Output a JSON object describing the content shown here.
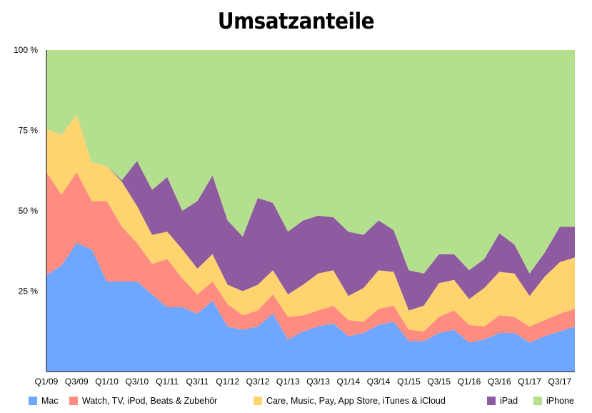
{
  "chart_data": {
    "type": "area",
    "stacked": true,
    "normalized": true,
    "title": "Umsatzanteile",
    "xlabel": "",
    "ylabel": "",
    "ylim": [
      0,
      100
    ],
    "y_ticks": [
      25,
      50,
      75,
      100
    ],
    "y_tick_labels": [
      "25 %",
      "50 %",
      "75 %",
      "100 %"
    ],
    "grid": false,
    "legend_position": "bottom",
    "x": [
      "Q1/09",
      "Q2/09",
      "Q3/09",
      "Q4/09",
      "Q1/10",
      "Q2/10",
      "Q3/10",
      "Q4/10",
      "Q1/11",
      "Q2/11",
      "Q3/11",
      "Q4/11",
      "Q1/12",
      "Q2/12",
      "Q3/12",
      "Q4/12",
      "Q1/13",
      "Q2/13",
      "Q3/13",
      "Q4/13",
      "Q1/14",
      "Q2/14",
      "Q3/14",
      "Q4/14",
      "Q1/15",
      "Q2/15",
      "Q3/15",
      "Q4/15",
      "Q1/16",
      "Q2/16",
      "Q3/16",
      "Q4/16",
      "Q1/17",
      "Q2/17",
      "Q3/17",
      "Q4/17"
    ],
    "x_tick_labels": [
      "Q1/09",
      "Q3/09",
      "Q1/10",
      "Q3/10",
      "Q1/11",
      "Q3/11",
      "Q1/12",
      "Q3/12",
      "Q1/13",
      "Q3/13",
      "Q1/14",
      "Q3/14",
      "Q1/15",
      "Q3/15",
      "Q1/16",
      "Q3/16",
      "Q1/17",
      "Q3/17"
    ],
    "series": [
      {
        "name": "Mac",
        "color": "#6fa6ff",
        "values": [
          30,
          33,
          40,
          38,
          28,
          28,
          28,
          24,
          20,
          20,
          18,
          22,
          14,
          13,
          14,
          18,
          10,
          12.5,
          14,
          15,
          11,
          12,
          14.5,
          15.5,
          9.5,
          9.5,
          12,
          13,
          9,
          10,
          12,
          12,
          9,
          11,
          12.5,
          14
        ]
      },
      {
        "name": " Watch,  TV, iPod, Beats & Zubehör",
        "color": "#ff8c80",
        "values": [
          32,
          22,
          22,
          15,
          25,
          17,
          12,
          9.5,
          15,
          9,
          6,
          6,
          7,
          4.5,
          5,
          6,
          7,
          5,
          5,
          5.5,
          5,
          3.5,
          5,
          5,
          3.5,
          3,
          5,
          6,
          5.5,
          4,
          5.5,
          5,
          5,
          5,
          5.5,
          5.5
        ]
      },
      {
        "name": "Care,  Music,  Pay, App Store, iTunes & iCloud",
        "color": "#ffd46e",
        "values": [
          13.5,
          18.5,
          18,
          12,
          11,
          14,
          11.5,
          9,
          8.5,
          9,
          8,
          8.5,
          6,
          7.5,
          8,
          7.5,
          7,
          9.5,
          11.5,
          11,
          7.5,
          10.5,
          12,
          10.5,
          6,
          8,
          10.5,
          9.5,
          8,
          12,
          13.5,
          13.5,
          9.5,
          13.5,
          16,
          16
        ]
      },
      {
        "name": "iPad",
        "color": "#8f5ba0",
        "values": [
          0,
          0,
          0,
          0,
          0,
          0.5,
          14,
          14,
          17,
          12,
          21,
          24.5,
          20,
          17,
          27,
          21,
          19.5,
          20,
          18,
          16.5,
          20,
          16.5,
          15.5,
          13,
          12.5,
          10,
          9,
          8,
          9,
          9,
          12,
          9,
          7,
          7.5,
          11,
          9.5
        ]
      },
      {
        "name": "iPhone",
        "color": "#b3df8f",
        "values": [
          24.5,
          26.5,
          20,
          35,
          36,
          40.5,
          34.5,
          43.5,
          39.5,
          50,
          47,
          39,
          53,
          58,
          46,
          47.5,
          56.5,
          53,
          51.5,
          52,
          56.5,
          57.5,
          53,
          56,
          68.5,
          69.5,
          63.5,
          63.5,
          68.5,
          65,
          57,
          60.5,
          69.5,
          63,
          55,
          55
        ]
      }
    ]
  }
}
